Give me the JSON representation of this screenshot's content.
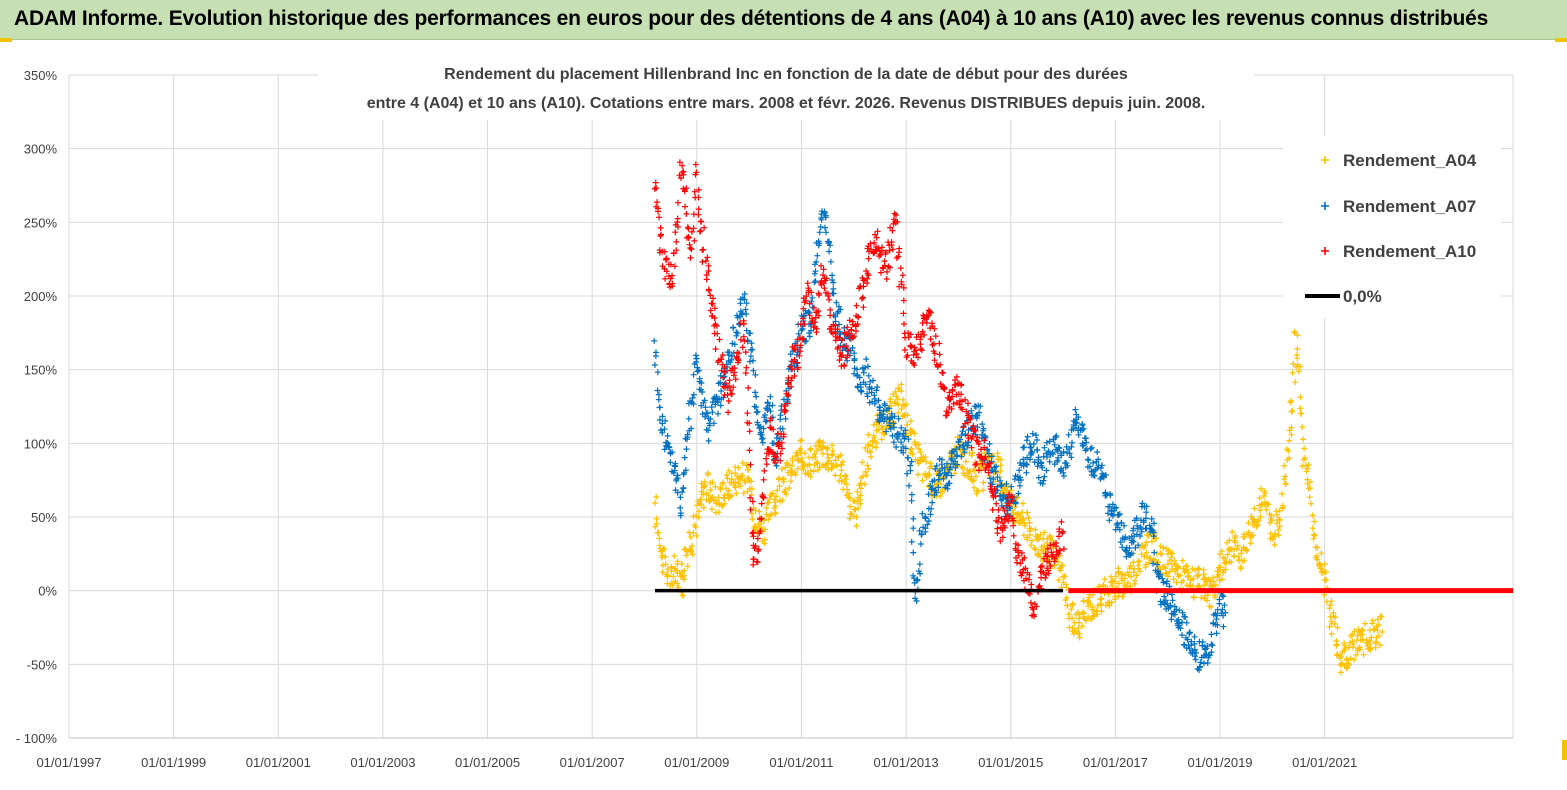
{
  "banner": {
    "title": "ADAM Informe. Evolution historique des performances en euros pour des détentions de 4 ans (A04) à 10 ans (A10) avec les revenus connus distribués"
  },
  "chart_data": {
    "type": "scatter",
    "title_lines": [
      "Rendement du placement Hillenbrand Inc en fonction de la date de début pour des durées",
      "entre 4 (A04) et 10 ans (A10).  Cotations entre mars. 2008 et févr. 2026. Revenus DISTRIBUES depuis juin. 2008."
    ],
    "xlabel": "",
    "ylabel": "",
    "x_range": [
      1997.0,
      2024.6
    ],
    "ylim": [
      -100,
      350
    ],
    "grid": true,
    "legend_position": "top-right",
    "x_ticks": [
      {
        "value": 1997,
        "label": "01/01/1997"
      },
      {
        "value": 1999,
        "label": "01/01/1999"
      },
      {
        "value": 2001,
        "label": "01/01/2001"
      },
      {
        "value": 2003,
        "label": "01/01/2003"
      },
      {
        "value": 2005,
        "label": "01/01/2005"
      },
      {
        "value": 2007,
        "label": "01/01/2007"
      },
      {
        "value": 2009,
        "label": "01/01/2009"
      },
      {
        "value": 2011,
        "label": "01/01/2011"
      },
      {
        "value": 2013,
        "label": "01/01/2013"
      },
      {
        "value": 2015,
        "label": "01/01/2015"
      },
      {
        "value": 2017,
        "label": "01/01/2017"
      },
      {
        "value": 2019,
        "label": "01/01/2019"
      },
      {
        "value": 2021,
        "label": "01/01/2021"
      }
    ],
    "y_ticks": [
      {
        "value": 350,
        "label": "350%"
      },
      {
        "value": 300,
        "label": "300%"
      },
      {
        "value": 250,
        "label": "250%"
      },
      {
        "value": 200,
        "label": "200%"
      },
      {
        "value": 150,
        "label": "150%"
      },
      {
        "value": 100,
        "label": "100%"
      },
      {
        "value": 50,
        "label": "50%"
      },
      {
        "value": 0,
        "label": "0%"
      },
      {
        "value": -50,
        "label": "-50%"
      },
      {
        "value": -100,
        "label": "- 100%"
      }
    ],
    "series": [
      {
        "name": "Rendement_A04",
        "color": "#ffc000",
        "marker": "plus",
        "points": [
          [
            2008.2,
            55
          ],
          [
            2008.3,
            35
          ],
          [
            2008.4,
            15
          ],
          [
            2008.5,
            8
          ],
          [
            2008.6,
            15
          ],
          [
            2008.7,
            5
          ],
          [
            2008.8,
            25
          ],
          [
            2008.9,
            35
          ],
          [
            2009.0,
            50
          ],
          [
            2009.1,
            65
          ],
          [
            2009.2,
            70
          ],
          [
            2009.4,
            62
          ],
          [
            2009.6,
            72
          ],
          [
            2009.8,
            78
          ],
          [
            2010.0,
            75
          ],
          [
            2010.1,
            55
          ],
          [
            2010.2,
            45
          ],
          [
            2010.3,
            42
          ],
          [
            2010.4,
            55
          ],
          [
            2010.5,
            62
          ],
          [
            2010.6,
            70
          ],
          [
            2010.8,
            80
          ],
          [
            2011.0,
            92
          ],
          [
            2011.2,
            88
          ],
          [
            2011.4,
            95
          ],
          [
            2011.6,
            90
          ],
          [
            2011.8,
            80
          ],
          [
            2011.9,
            60
          ],
          [
            2012.0,
            50
          ],
          [
            2012.1,
            65
          ],
          [
            2012.2,
            80
          ],
          [
            2012.3,
            100
          ],
          [
            2012.5,
            112
          ],
          [
            2012.7,
            120
          ],
          [
            2012.8,
            125
          ],
          [
            2012.9,
            130
          ],
          [
            2013.0,
            115
          ],
          [
            2013.1,
            105
          ],
          [
            2013.2,
            90
          ],
          [
            2013.4,
            80
          ],
          [
            2013.6,
            70
          ],
          [
            2013.8,
            82
          ],
          [
            2014.0,
            95
          ],
          [
            2014.2,
            85
          ],
          [
            2014.4,
            75
          ],
          [
            2014.6,
            88
          ],
          [
            2014.8,
            80
          ],
          [
            2015.0,
            60
          ],
          [
            2015.2,
            50
          ],
          [
            2015.4,
            40
          ],
          [
            2015.6,
            30
          ],
          [
            2015.8,
            25
          ],
          [
            2016.0,
            10
          ],
          [
            2016.1,
            -15
          ],
          [
            2016.3,
            -25
          ],
          [
            2016.5,
            -10
          ],
          [
            2016.7,
            -5
          ],
          [
            2016.9,
            0
          ],
          [
            2017.1,
            5
          ],
          [
            2017.3,
            10
          ],
          [
            2017.5,
            25
          ],
          [
            2017.7,
            30
          ],
          [
            2017.9,
            20
          ],
          [
            2018.1,
            15
          ],
          [
            2018.3,
            10
          ],
          [
            2018.5,
            5
          ],
          [
            2018.7,
            3
          ],
          [
            2018.8,
            -5
          ],
          [
            2019.0,
            15
          ],
          [
            2019.2,
            30
          ],
          [
            2019.4,
            25
          ],
          [
            2019.6,
            45
          ],
          [
            2019.8,
            60
          ],
          [
            2019.9,
            55
          ],
          [
            2020.0,
            40
          ],
          [
            2020.1,
            45
          ],
          [
            2020.2,
            60
          ],
          [
            2020.3,
            95
          ],
          [
            2020.4,
            130
          ],
          [
            2020.45,
            175
          ],
          [
            2020.5,
            150
          ],
          [
            2020.6,
            90
          ],
          [
            2020.7,
            75
          ],
          [
            2020.8,
            35
          ],
          [
            2020.9,
            25
          ],
          [
            2021.0,
            10
          ],
          [
            2021.1,
            -10
          ],
          [
            2021.2,
            -30
          ],
          [
            2021.3,
            -45
          ],
          [
            2021.5,
            -40
          ],
          [
            2021.7,
            -35
          ],
          [
            2021.9,
            -30
          ],
          [
            2022.1,
            -28
          ]
        ]
      },
      {
        "name": "Rendement_A07",
        "color": "#0070c0",
        "marker": "plus",
        "points": [
          [
            2008.2,
            170
          ],
          [
            2008.3,
            120
          ],
          [
            2008.4,
            105
          ],
          [
            2008.5,
            95
          ],
          [
            2008.6,
            75
          ],
          [
            2008.7,
            60
          ],
          [
            2008.8,
            100
          ],
          [
            2008.9,
            130
          ],
          [
            2009.0,
            160
          ],
          [
            2009.1,
            130
          ],
          [
            2009.2,
            110
          ],
          [
            2009.4,
            130
          ],
          [
            2009.6,
            150
          ],
          [
            2009.8,
            185
          ],
          [
            2009.9,
            200
          ],
          [
            2010.0,
            170
          ],
          [
            2010.1,
            140
          ],
          [
            2010.2,
            100
          ],
          [
            2010.3,
            115
          ],
          [
            2010.4,
            125
          ],
          [
            2010.5,
            90
          ],
          [
            2010.6,
            110
          ],
          [
            2010.8,
            150
          ],
          [
            2011.0,
            175
          ],
          [
            2011.2,
            185
          ],
          [
            2011.3,
            230
          ],
          [
            2011.4,
            260
          ],
          [
            2011.5,
            245
          ],
          [
            2011.6,
            200
          ],
          [
            2011.8,
            170
          ],
          [
            2012.0,
            160
          ],
          [
            2012.1,
            140
          ],
          [
            2012.2,
            150
          ],
          [
            2012.4,
            130
          ],
          [
            2012.6,
            115
          ],
          [
            2012.8,
            110
          ],
          [
            2013.0,
            100
          ],
          [
            2013.1,
            70
          ],
          [
            2013.15,
            10
          ],
          [
            2013.2,
            -5
          ],
          [
            2013.3,
            40
          ],
          [
            2013.4,
            55
          ],
          [
            2013.6,
            80
          ],
          [
            2013.8,
            75
          ],
          [
            2014.0,
            95
          ],
          [
            2014.2,
            110
          ],
          [
            2014.4,
            120
          ],
          [
            2014.6,
            85
          ],
          [
            2014.8,
            70
          ],
          [
            2015.0,
            55
          ],
          [
            2015.2,
            85
          ],
          [
            2015.4,
            100
          ],
          [
            2015.5,
            95
          ],
          [
            2015.6,
            80
          ],
          [
            2015.8,
            100
          ],
          [
            2016.0,
            85
          ],
          [
            2016.1,
            95
          ],
          [
            2016.3,
            120
          ],
          [
            2016.5,
            90
          ],
          [
            2016.7,
            85
          ],
          [
            2016.9,
            55
          ],
          [
            2017.1,
            40
          ],
          [
            2017.3,
            30
          ],
          [
            2017.5,
            50
          ],
          [
            2017.7,
            45
          ],
          [
            2017.8,
            5
          ],
          [
            2018.0,
            -5
          ],
          [
            2018.2,
            -15
          ],
          [
            2018.4,
            -35
          ],
          [
            2018.6,
            -45
          ],
          [
            2018.8,
            -40
          ],
          [
            2018.9,
            -20
          ],
          [
            2019.0,
            -5
          ],
          [
            2019.1,
            -15
          ]
        ]
      },
      {
        "name": "Rendement_A10",
        "color": "#ff0000",
        "marker": "plus",
        "points": [
          [
            2008.2,
            280
          ],
          [
            2008.3,
            240
          ],
          [
            2008.4,
            220
          ],
          [
            2008.5,
            210
          ],
          [
            2008.6,
            230
          ],
          [
            2008.7,
            290
          ],
          [
            2008.8,
            260
          ],
          [
            2008.9,
            220
          ],
          [
            2009.0,
            280
          ],
          [
            2009.1,
            240
          ],
          [
            2009.2,
            210
          ],
          [
            2009.3,
            190
          ],
          [
            2009.4,
            170
          ],
          [
            2009.5,
            150
          ],
          [
            2009.6,
            130
          ],
          [
            2009.8,
            165
          ],
          [
            2009.9,
            180
          ],
          [
            2010.0,
            100
          ],
          [
            2010.05,
            40
          ],
          [
            2010.1,
            20
          ],
          [
            2010.2,
            40
          ],
          [
            2010.3,
            80
          ],
          [
            2010.4,
            110
          ],
          [
            2010.5,
            95
          ],
          [
            2010.6,
            100
          ],
          [
            2010.8,
            150
          ],
          [
            2011.0,
            170
          ],
          [
            2011.1,
            200
          ],
          [
            2011.2,
            190
          ],
          [
            2011.3,
            180
          ],
          [
            2011.4,
            220
          ],
          [
            2011.5,
            200
          ],
          [
            2011.6,
            175
          ],
          [
            2011.8,
            160
          ],
          [
            2012.0,
            180
          ],
          [
            2012.2,
            210
          ],
          [
            2012.4,
            240
          ],
          [
            2012.6,
            220
          ],
          [
            2012.8,
            250
          ],
          [
            2013.0,
            170
          ],
          [
            2013.2,
            160
          ],
          [
            2013.4,
            185
          ],
          [
            2013.6,
            160
          ],
          [
            2013.8,
            120
          ],
          [
            2014.0,
            140
          ],
          [
            2014.2,
            110
          ],
          [
            2014.4,
            90
          ],
          [
            2014.5,
            100
          ],
          [
            2014.6,
            70
          ],
          [
            2014.8,
            40
          ],
          [
            2015.0,
            60
          ],
          [
            2015.1,
            30
          ],
          [
            2015.2,
            20
          ],
          [
            2015.3,
            10
          ],
          [
            2015.4,
            -5
          ],
          [
            2015.5,
            -10
          ],
          [
            2015.6,
            15
          ],
          [
            2015.8,
            25
          ],
          [
            2016.0,
            40
          ]
        ]
      }
    ],
    "reference_lines": [
      {
        "name": "0,0%",
        "color": "#000000",
        "y": 0,
        "x_start": 2008.2,
        "x_end": 2016.0
      },
      {
        "name": "Rendement_A10 (0%)",
        "color": "#ff0000",
        "y": 0,
        "x_start": 2016.1,
        "x_end": 2024.6
      }
    ],
    "legend": [
      {
        "label": "Rendement_A04",
        "color": "#ffc000",
        "symbol": "plus"
      },
      {
        "label": "Rendement_A07",
        "color": "#0070c0",
        "symbol": "plus"
      },
      {
        "label": "Rendement_A10",
        "color": "#ff0000",
        "symbol": "plus"
      },
      {
        "label": "0,0%",
        "color": "#000000",
        "symbol": "line"
      }
    ]
  }
}
